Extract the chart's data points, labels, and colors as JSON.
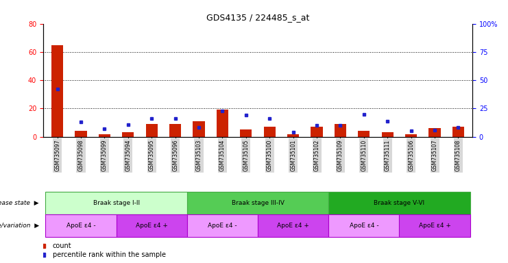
{
  "title": "GDS4135 / 224485_s_at",
  "samples": [
    "GSM735097",
    "GSM735098",
    "GSM735099",
    "GSM735094",
    "GSM735095",
    "GSM735096",
    "GSM735103",
    "GSM735104",
    "GSM735105",
    "GSM735100",
    "GSM735101",
    "GSM735102",
    "GSM735109",
    "GSM735110",
    "GSM735111",
    "GSM735106",
    "GSM735107",
    "GSM735108"
  ],
  "counts": [
    65,
    4,
    2,
    3,
    9,
    9,
    11,
    19,
    5,
    7,
    2,
    7,
    9,
    4,
    3,
    2,
    6,
    7
  ],
  "percentile_ranks": [
    42,
    13,
    7,
    11,
    16,
    16,
    8,
    23,
    19,
    16,
    4,
    10,
    10,
    20,
    14,
    5,
    6,
    8
  ],
  "ylim_left": [
    0,
    80
  ],
  "ylim_right": [
    0,
    100
  ],
  "left_yticks": [
    0,
    20,
    40,
    60,
    80
  ],
  "right_yticks": [
    0,
    25,
    50,
    75,
    100
  ],
  "right_yticklabels": [
    "0",
    "25",
    "50",
    "75",
    "100%"
  ],
  "disease_state_groups": [
    {
      "label": "Braak stage I-II",
      "start": 0,
      "end": 6,
      "color": "#ccffcc"
    },
    {
      "label": "Braak stage III-IV",
      "start": 6,
      "end": 12,
      "color": "#55cc55"
    },
    {
      "label": "Braak stage V-VI",
      "start": 12,
      "end": 18,
      "color": "#22aa22"
    }
  ],
  "genotype_groups": [
    {
      "label": "ApoE ε4 -",
      "start": 0,
      "end": 3,
      "color": "#ee99ff"
    },
    {
      "label": "ApoE ε4 +",
      "start": 3,
      "end": 6,
      "color": "#cc44ee"
    },
    {
      "label": "ApoE ε4 -",
      "start": 6,
      "end": 9,
      "color": "#ee99ff"
    },
    {
      "label": "ApoE ε4 +",
      "start": 9,
      "end": 12,
      "color": "#cc44ee"
    },
    {
      "label": "ApoE ε4 -",
      "start": 12,
      "end": 15,
      "color": "#ee99ff"
    },
    {
      "label": "ApoE ε4 +",
      "start": 15,
      "end": 18,
      "color": "#cc44ee"
    }
  ],
  "bar_color": "#cc2200",
  "dot_color": "#2222cc",
  "label_disease": "disease state",
  "label_genotype": "genotype/variation",
  "legend_count": "count",
  "legend_percentile": "percentile rank within the sample",
  "figsize": [
    7.41,
    3.84
  ],
  "dpi": 100
}
